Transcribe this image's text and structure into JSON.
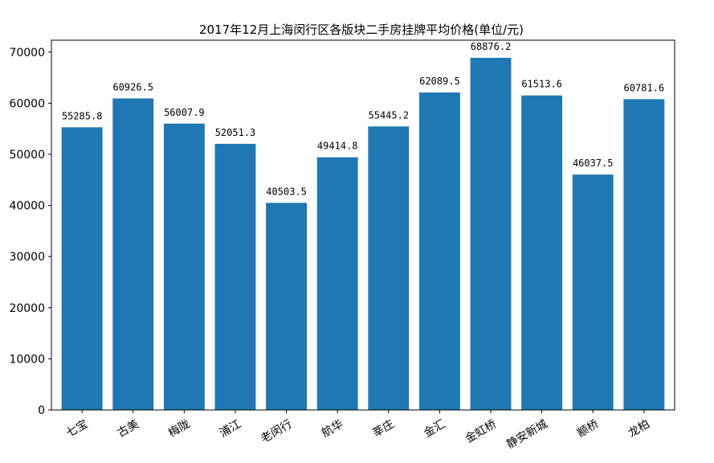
{
  "chart_data": {
    "type": "bar",
    "title": "2017年12月上海闵行区各版块二手房挂牌平均价格(单位/元)",
    "xlabel": "",
    "ylabel": "",
    "categories": [
      "七宝",
      "古美",
      "梅陇",
      "浦江",
      "老闵行",
      "航华",
      "莘庄",
      "金汇",
      "金虹桥",
      "静安新城",
      "颛桥",
      "龙柏"
    ],
    "values": [
      55285.8,
      60926.5,
      56007.9,
      52051.3,
      40503.5,
      49414.8,
      55445.2,
      62089.5,
      68876.2,
      61513.6,
      46037.5,
      60781.6
    ],
    "value_labels": [
      "55285.8",
      "60926.5",
      "56007.9",
      "52051.3",
      "40503.5",
      "49414.8",
      "55445.2",
      "62089.5",
      "68876.2",
      "61513.6",
      "46037.5",
      "60781.6"
    ],
    "yticks": [
      0,
      10000,
      20000,
      30000,
      40000,
      50000,
      60000,
      70000
    ],
    "ylim": [
      0,
      72320
    ],
    "grid": false,
    "legend": "none",
    "bar_color": "#1f77b4"
  }
}
